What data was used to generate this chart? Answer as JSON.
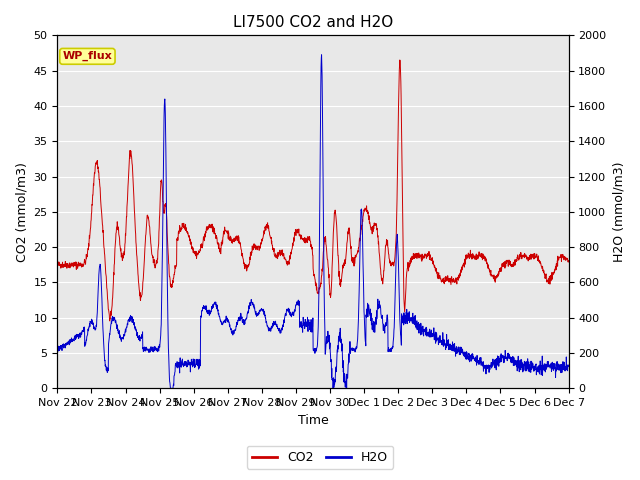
{
  "title": "LI7500 CO2 and H2O",
  "xlabel": "Time",
  "ylabel_left": "CO2 (mmol/m3)",
  "ylabel_right": "H2O (mmol/m3)",
  "ylim_left": [
    0,
    50
  ],
  "ylim_right": [
    0,
    2000
  ],
  "yticks_left": [
    0,
    5,
    10,
    15,
    20,
    25,
    30,
    35,
    40,
    45,
    50
  ],
  "yticks_right": [
    0,
    200,
    400,
    600,
    800,
    1000,
    1200,
    1400,
    1600,
    1800,
    2000
  ],
  "co2_color": "#cc0000",
  "h2o_color": "#0000cc",
  "figure_bg": "#ffffff",
  "plot_bg": "#e8e8e8",
  "grid_color": "#ffffff",
  "annotation_text": "WP_flux",
  "annotation_bg": "#ffff99",
  "annotation_border": "#cccc00",
  "legend_co2": "CO2",
  "legend_h2o": "H2O",
  "title_fontsize": 11,
  "axis_label_fontsize": 9,
  "tick_label_fontsize": 8,
  "xtick_labels": [
    "Nov 22",
    "Nov 23",
    "Nov 24",
    "Nov 25",
    "Nov 26",
    "Nov 27",
    "Nov 28",
    "Nov 29",
    "Nov 30",
    "Dec 1",
    "Dec 2",
    "Dec 3",
    "Dec 4",
    "Dec 5",
    "Dec 6",
    "Dec 7"
  ]
}
